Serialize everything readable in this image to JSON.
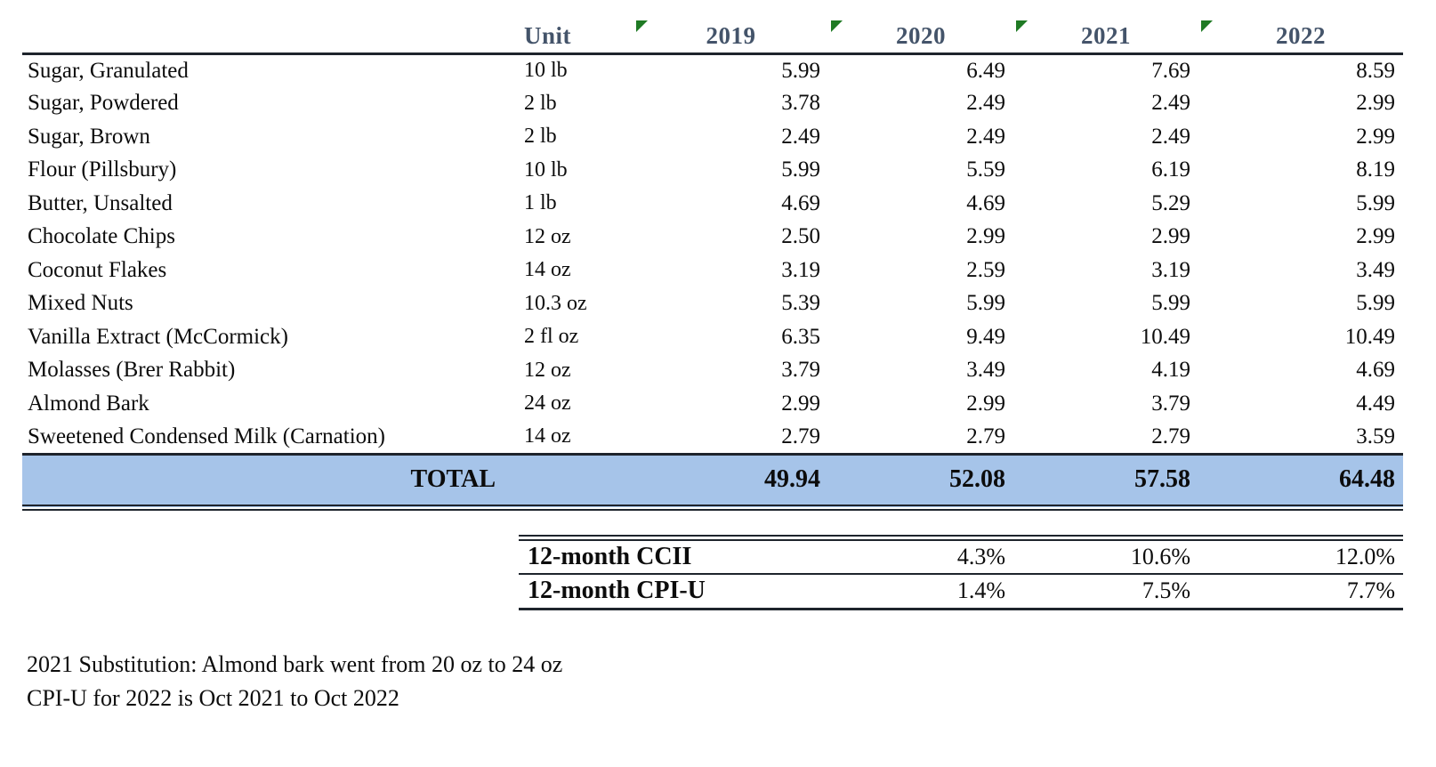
{
  "table": {
    "unit_header": "Unit",
    "years": [
      "2019",
      "2020",
      "2021",
      "2022"
    ],
    "rows": [
      {
        "item": "Sugar, Granulated",
        "unit": "10 lb",
        "prices": [
          "5.99",
          "6.49",
          "7.69",
          "8.59"
        ]
      },
      {
        "item": "Sugar, Powdered",
        "unit": "2 lb",
        "prices": [
          "3.78",
          "2.49",
          "2.49",
          "2.99"
        ]
      },
      {
        "item": "Sugar, Brown",
        "unit": "2 lb",
        "prices": [
          "2.49",
          "2.49",
          "2.49",
          "2.99"
        ]
      },
      {
        "item": "Flour (Pillsbury)",
        "unit": "10 lb",
        "prices": [
          "5.99",
          "5.59",
          "6.19",
          "8.19"
        ]
      },
      {
        "item": "Butter, Unsalted",
        "unit": "1 lb",
        "prices": [
          "4.69",
          "4.69",
          "5.29",
          "5.99"
        ]
      },
      {
        "item": "Chocolate Chips",
        "unit": "12 oz",
        "prices": [
          "2.50",
          "2.99",
          "2.99",
          "2.99"
        ]
      },
      {
        "item": "Coconut Flakes",
        "unit": "14 oz",
        "prices": [
          "3.19",
          "2.59",
          "3.19",
          "3.49"
        ]
      },
      {
        "item": "Mixed Nuts",
        "unit": "10.3 oz",
        "prices": [
          "5.39",
          "5.99",
          "5.99",
          "5.99"
        ]
      },
      {
        "item": "Vanilla Extract (McCormick)",
        "unit": "2 fl oz",
        "prices": [
          "6.35",
          "9.49",
          "10.49",
          "10.49"
        ]
      },
      {
        "item": "Molasses (Brer Rabbit)",
        "unit": "12 oz",
        "prices": [
          "3.79",
          "3.49",
          "4.19",
          "4.69"
        ]
      },
      {
        "item": "Almond Bark",
        "unit": "24 oz",
        "prices": [
          "2.99",
          "2.99",
          "3.79",
          "4.49"
        ]
      },
      {
        "item": "Sweetened Condensed Milk (Carnation)",
        "unit": "14 oz",
        "prices": [
          "2.79",
          "2.79",
          "2.79",
          "3.59"
        ]
      }
    ],
    "total": {
      "label": "TOTAL",
      "values": [
        "49.94",
        "52.08",
        "57.58",
        "64.48"
      ]
    }
  },
  "index_table": {
    "rows": [
      {
        "label": "12-month CCII",
        "values": [
          "4.3%",
          "10.6%",
          "12.0%"
        ]
      },
      {
        "label": "12-month CPI-U",
        "values": [
          "1.4%",
          "7.5%",
          "7.7%"
        ]
      }
    ]
  },
  "footnotes": [
    "2021 Substitution: Almond bark went from 20 oz to 24 oz",
    "CPI-U for 2022 is Oct 2021 to Oct 2022"
  ],
  "icons": {
    "cell_flag": "error-indicator-triangle"
  },
  "colors": {
    "header_text": "#44546a",
    "total_row_bg": "#a6c4e9",
    "border_dark": "#1e242c",
    "indicator_green": "#1f7a24",
    "body_text": "#0c0c0c",
    "background": "#ffffff"
  }
}
